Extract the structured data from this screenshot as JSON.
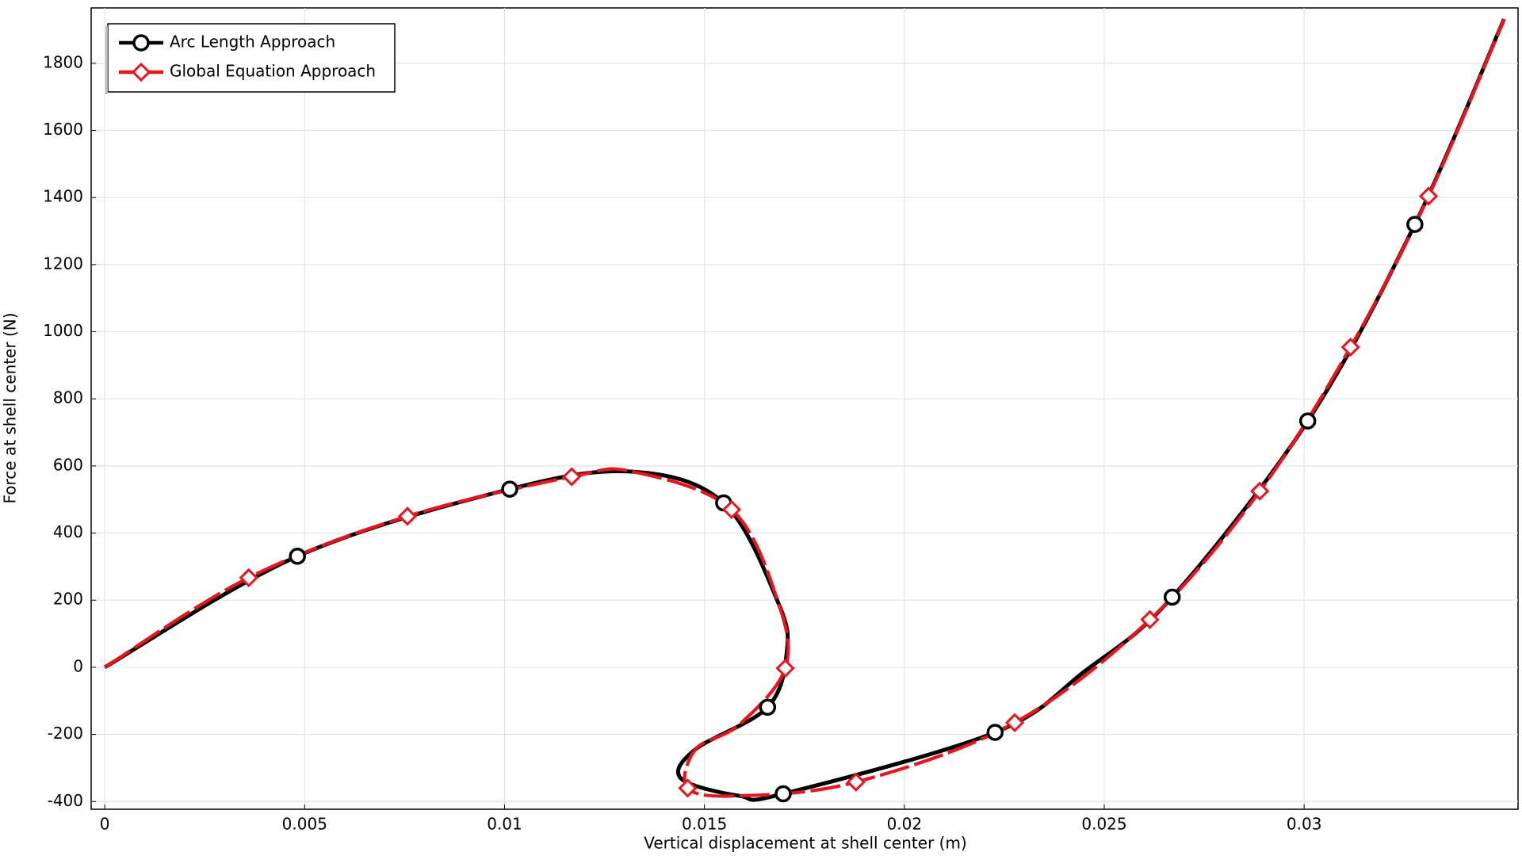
{
  "chart_data": {
    "type": "line",
    "x_label": "Vertical displacement at shell center (m)",
    "y_label": "Force at shell center (N)",
    "xlim": [
      -0.00034,
      0.03535
    ],
    "ylim": [
      -423,
      1965
    ],
    "xticks": [
      0,
      0.005,
      0.01,
      0.015,
      0.02,
      0.025,
      0.03
    ],
    "yticks": [
      -400,
      -200,
      0,
      200,
      400,
      600,
      800,
      1000,
      1200,
      1400,
      1600,
      1800
    ],
    "grid": true,
    "legend": "upper-left",
    "series": [
      {
        "name": "Arc Length Approach",
        "color": "#000000",
        "marker_shape": "circle",
        "x": [
          0,
          0.00482,
          0.01013,
          0.0132,
          0.01548,
          0.01685,
          0.01706,
          0.01658,
          0.01478,
          0.01441,
          0.01587,
          0.01697,
          0.02227,
          0.02451,
          0.0267,
          0.03009,
          0.03277,
          0.035
        ],
        "values": [
          0,
          331,
          531,
          583,
          490,
          191,
          46,
          -119,
          -244,
          -331,
          -383,
          -377,
          -194,
          -12,
          209,
          734,
          1320,
          1932
        ],
        "markers": [
          false,
          true,
          true,
          false,
          true,
          false,
          false,
          true,
          false,
          false,
          false,
          true,
          true,
          false,
          true,
          true,
          true,
          false
        ]
      },
      {
        "name": "Global Equation Approach",
        "color": "#e8141e",
        "marker_shape": "diamond",
        "x": [
          0,
          0.0036,
          0.00757,
          0.01168,
          0.0132,
          0.01568,
          0.01685,
          0.01702,
          0.01587,
          0.01478,
          0.01458,
          0.01587,
          0.01879,
          0.02276,
          0.02614,
          0.02889,
          0.03116,
          0.03311,
          0.035
        ],
        "values": [
          0,
          267,
          450,
          568,
          583,
          470,
          191,
          -3,
          -171,
          -244,
          -360,
          -383,
          -342,
          -165,
          142,
          525,
          954,
          1404,
          1932
        ],
        "markers": [
          false,
          true,
          true,
          true,
          false,
          true,
          false,
          true,
          false,
          false,
          true,
          false,
          true,
          true,
          true,
          true,
          true,
          true,
          false
        ]
      }
    ]
  }
}
